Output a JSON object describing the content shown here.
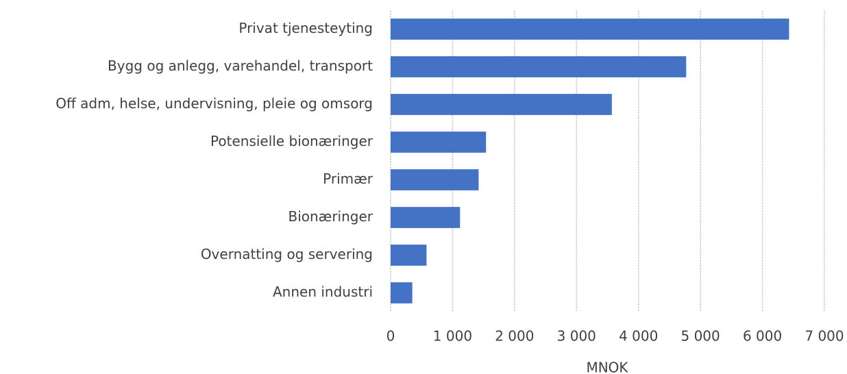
{
  "chart_data": {
    "type": "bar",
    "orientation": "horizontal",
    "categories": [
      "Privat tjenesteyting",
      "Bygg og anlegg, varehandel, transport",
      "Off adm, helse, undervisning, pleie og omsorg",
      "Potensielle bionæringer",
      "Primær",
      "Bionæringer",
      "Overnatting og servering",
      "Annen industri"
    ],
    "values": [
      6430,
      4770,
      3570,
      1540,
      1420,
      1120,
      580,
      350
    ],
    "color": "#4472c4",
    "xlabel": "MNOK",
    "xlim": [
      0,
      7000
    ],
    "xticks": [
      0,
      {
        "value": 1000,
        "label": "1 000"
      },
      {
        "value": 2000,
        "label": "2 000"
      },
      {
        "value": 3000,
        "label": "3 000"
      },
      {
        "value": 4000,
        "label": "4 000"
      },
      {
        "value": 5000,
        "label": "5 000"
      },
      {
        "value": 6000,
        "label": "6 000"
      },
      {
        "value": 7000,
        "label": "7 000"
      }
    ],
    "grid": true
  }
}
